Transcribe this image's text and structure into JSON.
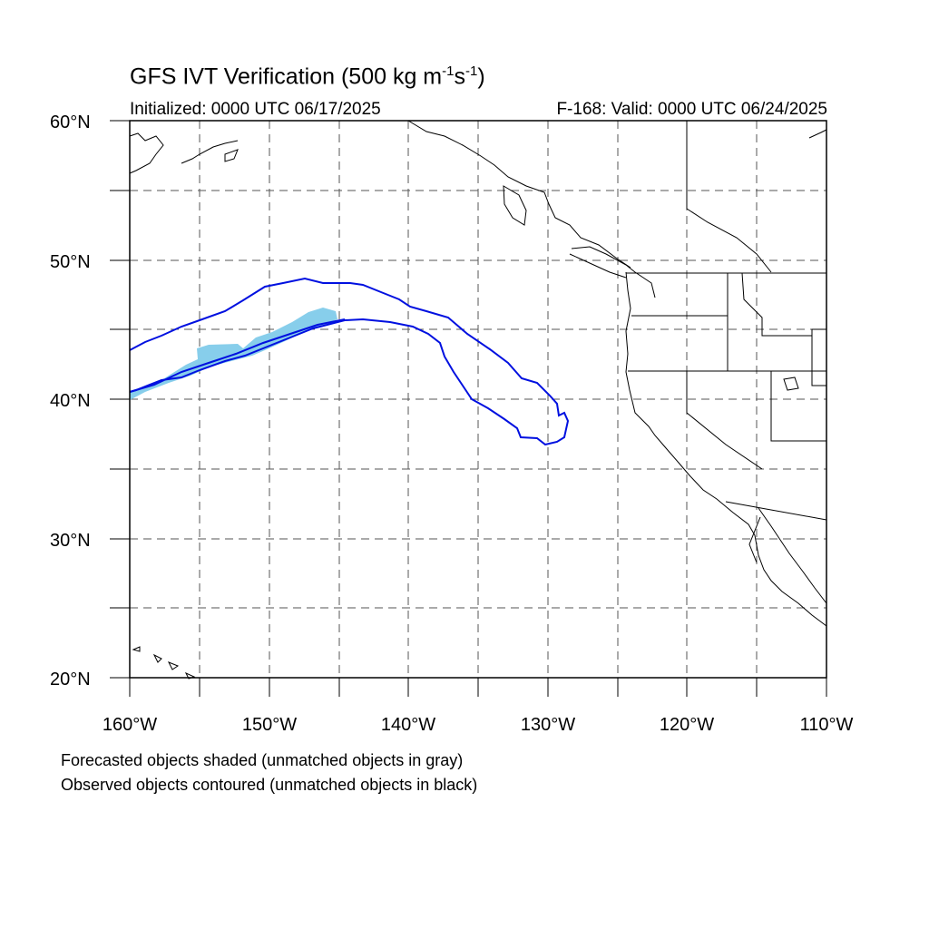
{
  "title": {
    "main": "GFS IVT Verification (500 kg m",
    "exp1": "-1",
    "mid": "s",
    "exp2": "-1",
    "end": ")"
  },
  "initialized": "Initialized: 0000 UTC 06/17/2025",
  "valid": "F-168: Valid: 0000 UTC 06/24/2025",
  "lat_labels": [
    "60°N",
    "50°N",
    "40°N",
    "30°N",
    "20°N"
  ],
  "lon_labels": [
    "160°W",
    "150°W",
    "140°W",
    "130°W",
    "120°W",
    "110°W"
  ],
  "legend": {
    "line1": "Forecasted objects shaded (unmatched objects in gray)",
    "line2": "Observed objects contoured (unmatched objects in black)"
  },
  "colors": {
    "forecast_shade": "#87ceeb",
    "observed_contour": "#0010e0",
    "grid": "#555555"
  },
  "map": {
    "lon_range": [
      -160,
      -110
    ],
    "lat_range": [
      20,
      60
    ],
    "grid_spacing_deg": 5
  }
}
